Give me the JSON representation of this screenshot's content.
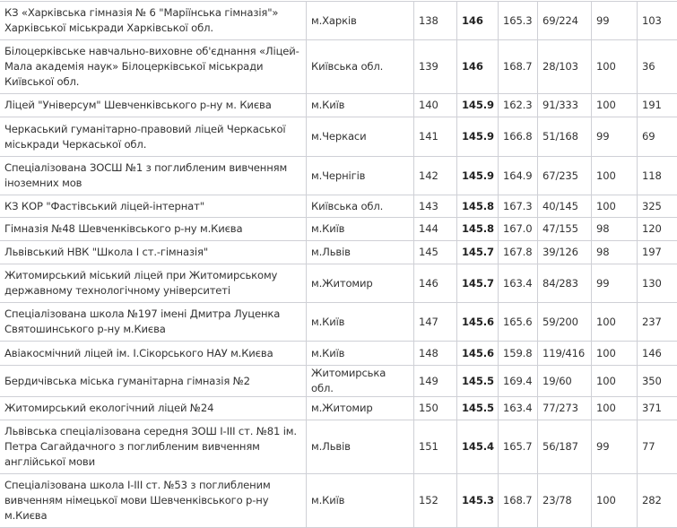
{
  "table": {
    "rows": [
      {
        "name": "КЗ «Харківська гімназія № 6 \"Маріїнська гімназія\"» Харківської міськради Харківської обл.",
        "region": "м.Харків",
        "rank": "138",
        "score": "146",
        "c5": "165.3",
        "c6": "69/224",
        "c7": "99",
        "c8": "103"
      },
      {
        "name": "Білоцерківське навчально-виховне об'єднання «Ліцей-Мала академія наук» Білоцерківської міськради Київської обл.",
        "region": "Київська обл.",
        "rank": "139",
        "score": "146",
        "c5": "168.7",
        "c6": "28/103",
        "c7": "100",
        "c8": "36"
      },
      {
        "name": "Ліцей \"Універсум\" Шевченківського р-ну м. Києва",
        "region": "м.Київ",
        "rank": "140",
        "score": "145.9",
        "c5": "162.3",
        "c6": "91/333",
        "c7": "100",
        "c8": "191"
      },
      {
        "name": "Черкаський гуманітарно-правовий ліцей Черкаської міськради Черкаської обл.",
        "region": "м.Черкаси",
        "rank": "141",
        "score": "145.9",
        "c5": "166.8",
        "c6": "51/168",
        "c7": "99",
        "c8": "69"
      },
      {
        "name": "Спеціалізована ЗОСШ №1 з поглибленим вивченням іноземних мов",
        "region": "м.Чернігів",
        "rank": "142",
        "score": "145.9",
        "c5": "164.9",
        "c6": "67/235",
        "c7": "100",
        "c8": "118"
      },
      {
        "name": "КЗ КОР \"Фастівський ліцей-інтернат\"",
        "region": "Київська обл.",
        "rank": "143",
        "score": "145.8",
        "c5": "167.3",
        "c6": "40/145",
        "c7": "100",
        "c8": "325"
      },
      {
        "name": "Гімназія №48 Шевченківського р-ну м.Києва",
        "region": "м.Київ",
        "rank": "144",
        "score": "145.8",
        "c5": "167.0",
        "c6": "47/155",
        "c7": "98",
        "c8": "120"
      },
      {
        "name": "Львівський НВК \"Школа І ст.-гімназія\"",
        "region": "м.Львів",
        "rank": "145",
        "score": "145.7",
        "c5": "167.8",
        "c6": "39/126",
        "c7": "98",
        "c8": "197"
      },
      {
        "name": "Житомирський міський ліцей при Житомирському державному технологічному університеті",
        "region": "м.Житомир",
        "rank": "146",
        "score": "145.7",
        "c5": "163.4",
        "c6": "84/283",
        "c7": "99",
        "c8": "130"
      },
      {
        "name": "Спеціалізована школа №197 імені Дмитра Луценка Святошинського р-ну м.Києва",
        "region": "м.Київ",
        "rank": "147",
        "score": "145.6",
        "c5": "165.6",
        "c6": "59/200",
        "c7": "100",
        "c8": "237"
      },
      {
        "name": "Авіакосмічний ліцей ім. І.Сікорського НАУ м.Києва",
        "region": "м.Київ",
        "rank": "148",
        "score": "145.6",
        "c5": "159.8",
        "c6": "119/416",
        "c7": "100",
        "c8": "146"
      },
      {
        "name": "Бердичівська міська гуманітарна гімназія №2",
        "region": "Житомирська обл.",
        "rank": "149",
        "score": "145.5",
        "c5": "169.4",
        "c6": "19/60",
        "c7": "100",
        "c8": "350"
      },
      {
        "name": "Житомирський екологічний ліцей №24",
        "region": "м.Житомир",
        "rank": "150",
        "score": "145.5",
        "c5": "163.4",
        "c6": "77/273",
        "c7": "100",
        "c8": "371"
      },
      {
        "name": "Львівська спеціалізована середня ЗОШ І-ІІІ ст. №81 ім. Петра Сагайдачного з поглибленим вивченням англійської мови",
        "region": "м.Львів",
        "rank": "151",
        "score": "145.4",
        "c5": "165.7",
        "c6": "56/187",
        "c7": "99",
        "c8": "77"
      },
      {
        "name": "Спеціалізована школа І-ІІІ ст. №53 з поглибленим вивченням німецької мови Шевченківського р-ну м.Києва",
        "region": "м.Київ",
        "rank": "152",
        "score": "145.3",
        "c5": "168.7",
        "c6": "23/78",
        "c7": "100",
        "c8": "282"
      }
    ]
  }
}
